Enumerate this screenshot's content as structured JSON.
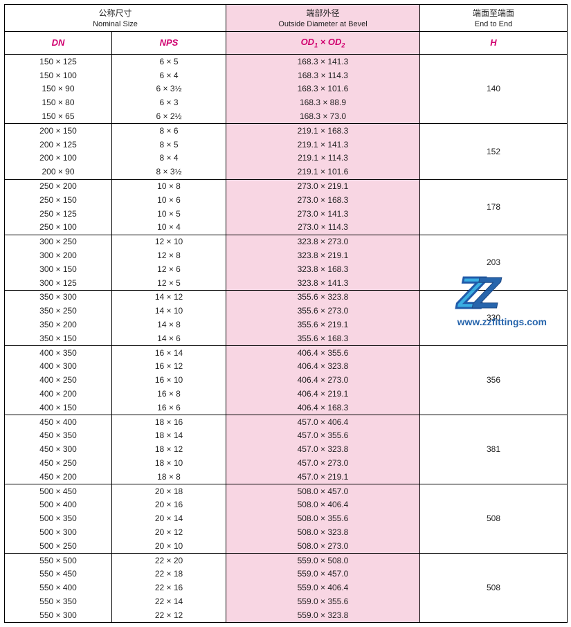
{
  "headers": {
    "nominal_cn": "公称尺寸",
    "nominal_en": "Nominal  Size",
    "od_cn": "端部外径",
    "od_en": "Outside Diameter at Bevel",
    "end_cn": "端面至端面",
    "end_en": "End to End",
    "dn": "DN",
    "nps": "NPS",
    "od": "OD",
    "od_sub1": "1",
    "od_x": " × ",
    "od_sub2": "2",
    "h": "H"
  },
  "mult": "×",
  "colors": {
    "pink_bg": "#f8d6e3",
    "header_red": "#d0006f",
    "border": "#000000",
    "background": "#ffffff",
    "wm_url": "#1558a6"
  },
  "watermark": {
    "url": "www.zzfittings.com"
  },
  "groups": [
    {
      "h": "140",
      "rows": [
        {
          "dn": "150 × 125",
          "nps": "6 × 5",
          "od": "168.3 × 141.3"
        },
        {
          "dn": "150 × 100",
          "nps": "6 × 4",
          "od": "168.3 × 114.3"
        },
        {
          "dn": "150 × 90",
          "nps": "6 × 3½",
          "od": "168.3 × 101.6"
        },
        {
          "dn": "150 × 80",
          "nps": "6 × 3",
          "od": "168.3 × 88.9"
        },
        {
          "dn": "150 × 65",
          "nps": "6 × 2½",
          "od": "168.3 × 73.0"
        }
      ]
    },
    {
      "h": "152",
      "rows": [
        {
          "dn": "200 × 150",
          "nps": "8 × 6",
          "od": "219.1 × 168.3"
        },
        {
          "dn": "200 × 125",
          "nps": "8 × 5",
          "od": "219.1 × 141.3"
        },
        {
          "dn": "200 × 100",
          "nps": "8 × 4",
          "od": "219.1 × 114.3"
        },
        {
          "dn": "200 × 90",
          "nps": "8 × 3½",
          "od": "219.1 × 101.6"
        }
      ]
    },
    {
      "h": "178",
      "rows": [
        {
          "dn": "250 × 200",
          "nps": "10 × 8",
          "od": "273.0 × 219.1"
        },
        {
          "dn": "250 × 150",
          "nps": "10 × 6",
          "od": "273.0 × 168.3"
        },
        {
          "dn": "250 × 125",
          "nps": "10 × 5",
          "od": "273.0 × 141.3"
        },
        {
          "dn": "250 × 100",
          "nps": "10 × 4",
          "od": "273.0 × 114.3"
        }
      ]
    },
    {
      "h": "203",
      "rows": [
        {
          "dn": "300 × 250",
          "nps": "12 × 10",
          "od": "323.8 × 273.0"
        },
        {
          "dn": "300 × 200",
          "nps": "12 × 8",
          "od": "323.8 × 219.1"
        },
        {
          "dn": "300 × 150",
          "nps": "12 × 6",
          "od": "323.8 × 168.3"
        },
        {
          "dn": "300 × 125",
          "nps": "12 × 5",
          "od": "323.8 × 141.3"
        }
      ]
    },
    {
      "h": "330",
      "rows": [
        {
          "dn": "350 × 300",
          "nps": "14 × 12",
          "od": "355.6 × 323.8"
        },
        {
          "dn": "350 × 250",
          "nps": "14 × 10",
          "od": "355.6 × 273.0"
        },
        {
          "dn": "350 × 200",
          "nps": "14 × 8",
          "od": "355.6 × 219.1"
        },
        {
          "dn": "350 × 150",
          "nps": "14 × 6",
          "od": "355.6 × 168.3"
        }
      ]
    },
    {
      "h": "356",
      "rows": [
        {
          "dn": "400 × 350",
          "nps": "16 × 14",
          "od": "406.4 × 355.6"
        },
        {
          "dn": "400 × 300",
          "nps": "16 × 12",
          "od": "406.4 × 323.8"
        },
        {
          "dn": "400 × 250",
          "nps": "16 × 10",
          "od": "406.4 × 273.0"
        },
        {
          "dn": "400 × 200",
          "nps": "16 × 8",
          "od": "406.4 × 219.1"
        },
        {
          "dn": "400 × 150",
          "nps": "16 × 6",
          "od": "406.4 × 168.3"
        }
      ]
    },
    {
      "h": "381",
      "rows": [
        {
          "dn": "450 × 400",
          "nps": "18 × 16",
          "od": "457.0 × 406.4"
        },
        {
          "dn": "450 × 350",
          "nps": "18 × 14",
          "od": "457.0 × 355.6"
        },
        {
          "dn": "450 × 300",
          "nps": "18 × 12",
          "od": "457.0 × 323.8"
        },
        {
          "dn": "450 × 250",
          "nps": "18 × 10",
          "od": "457.0 × 273.0"
        },
        {
          "dn": "450 × 200",
          "nps": "18 × 8",
          "od": "457.0 × 219.1"
        }
      ]
    },
    {
      "h": "508",
      "rows": [
        {
          "dn": "500 × 450",
          "nps": "20 × 18",
          "od": "508.0 × 457.0"
        },
        {
          "dn": "500 × 400",
          "nps": "20 × 16",
          "od": "508.0 × 406.4"
        },
        {
          "dn": "500 × 350",
          "nps": "20 × 14",
          "od": "508.0 × 355.6"
        },
        {
          "dn": "500 × 300",
          "nps": "20 × 12",
          "od": "508.0 × 323.8"
        },
        {
          "dn": "500 × 250",
          "nps": "20 × 10",
          "od": "508.0 × 273.0"
        }
      ]
    },
    {
      "h": "508",
      "rows": [
        {
          "dn": "550 × 500",
          "nps": "22 × 20",
          "od": "559.0 × 508.0"
        },
        {
          "dn": "550 × 450",
          "nps": "22 × 18",
          "od": "559.0 × 457.0"
        },
        {
          "dn": "550 × 400",
          "nps": "22 × 16",
          "od": "559.0 × 406.4"
        },
        {
          "dn": "550 × 350",
          "nps": "22 × 14",
          "od": "559.0 × 355.6"
        },
        {
          "dn": "550 × 300",
          "nps": "22 × 12",
          "od": "559.0 × 323.8"
        }
      ]
    }
  ]
}
